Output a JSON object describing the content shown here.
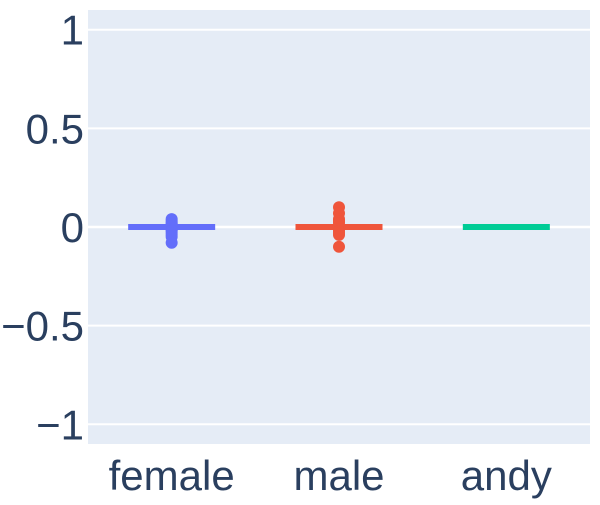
{
  "chart_data": {
    "type": "box",
    "categories": [
      "female",
      "male",
      "andy"
    ],
    "ylim": [
      -1.1,
      1.1
    ],
    "yticks": [
      -1,
      -0.5,
      0,
      0.5,
      1
    ],
    "ytick_labels": [
      "−1",
      "−0.5",
      "0",
      "0.5",
      "1"
    ],
    "grid": true,
    "background_color": "#E5ECF6",
    "grid_color": "#FFFFFF",
    "tick_label_color": "#2A3F5F",
    "legend": "none",
    "series": [
      {
        "category": "female",
        "color": "#636EFA",
        "q1": -0.005,
        "median": 0.0,
        "q3": 0.005,
        "whisker_low": -0.01,
        "whisker_high": 0.01,
        "outliers": [
          0.04,
          0.03,
          0.02,
          0.015,
          -0.015,
          -0.02,
          -0.03,
          -0.04,
          -0.05,
          -0.08
        ]
      },
      {
        "category": "male",
        "color": "#EF553B",
        "q1": -0.005,
        "median": 0.0,
        "q3": 0.005,
        "whisker_low": -0.01,
        "whisker_high": 0.01,
        "outliers": [
          0.1,
          0.07,
          0.04,
          0.03,
          0.02,
          -0.02,
          -0.03,
          -0.04,
          -0.1
        ]
      },
      {
        "category": "andy",
        "color": "#00CC96",
        "q1": 0.0,
        "median": 0.0,
        "q3": 0.0,
        "whisker_low": 0.0,
        "whisker_high": 0.0,
        "outliers": []
      }
    ]
  }
}
